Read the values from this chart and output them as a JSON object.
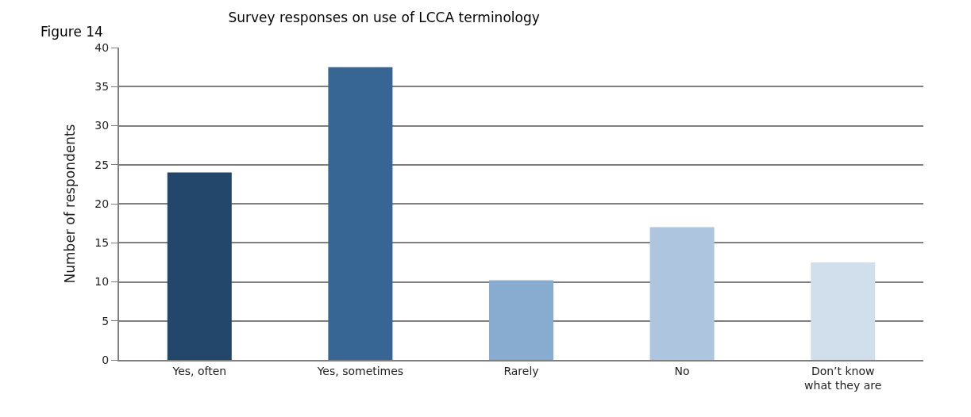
{
  "chart_data": {
    "type": "bar",
    "title": "Survey responses on use of LCCA terminology",
    "annotations": [
      "Figure 14"
    ],
    "ylabel": "Number of respondents",
    "categories": [
      "Yes, often",
      "Yes, sometimes",
      "Rarely",
      "No",
      "Don’t know what they are"
    ],
    "values": [
      24,
      37.5,
      10.2,
      17,
      12.5
    ],
    "colors": [
      "#22476a",
      "#376694",
      "#88abd0",
      "#adc5de",
      "#d1dfed"
    ],
    "ylim": [
      0,
      40
    ],
    "yticks": [
      0,
      5,
      10,
      15,
      20,
      25,
      30,
      35,
      40
    ],
    "grid": "y"
  }
}
